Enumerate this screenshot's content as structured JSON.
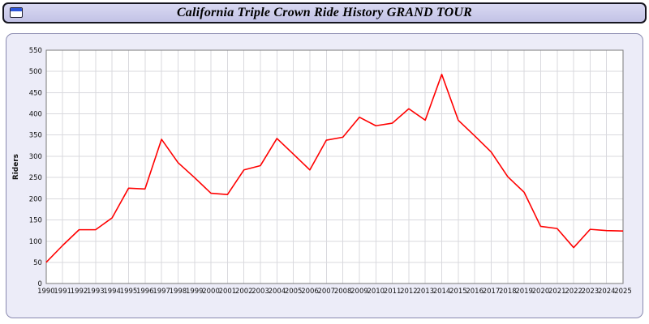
{
  "header": {
    "title": "California Triple Crown Ride History GRAND TOUR",
    "window_icon": "blue-window-icon"
  },
  "colors": {
    "line": "#ff0000",
    "titlebar_bg": "#cdcdee",
    "panel_bg": "#ececf8",
    "grid": "#d9d9de",
    "plot_border": "#7a7a7a",
    "text": "#111111"
  },
  "chart_data": {
    "type": "line",
    "title": "California Triple Crown Ride History GRAND TOUR",
    "xlabel": "",
    "ylabel": "Riders",
    "ylim": [
      0,
      550
    ],
    "ytick_step": 50,
    "grid": true,
    "legend": "none",
    "line_color": "#ff0000",
    "categories": [
      "1990",
      "1991",
      "1992",
      "1993",
      "1994",
      "1995",
      "1996",
      "1997",
      "1998",
      "1999",
      "2000",
      "2001",
      "2002",
      "2003",
      "2004",
      "2005",
      "2006",
      "2007",
      "2008",
      "2009",
      "2010",
      "2011",
      "2012",
      "2013",
      "2014",
      "2015",
      "2016",
      "2017",
      "2018",
      "2019",
      "2020",
      "2021",
      "2022",
      "2023",
      "2024",
      "2025"
    ],
    "series": [
      {
        "name": "Riders",
        "values": [
          50,
          90,
          127,
          127,
          155,
          225,
          223,
          340,
          285,
          250,
          213,
          210,
          268,
          278,
          342,
          305,
          268,
          338,
          345,
          392,
          372,
          378,
          412,
          385,
          493,
          385,
          348,
          310,
          252,
          215,
          135,
          130,
          85,
          128,
          125,
          124
        ]
      }
    ]
  }
}
